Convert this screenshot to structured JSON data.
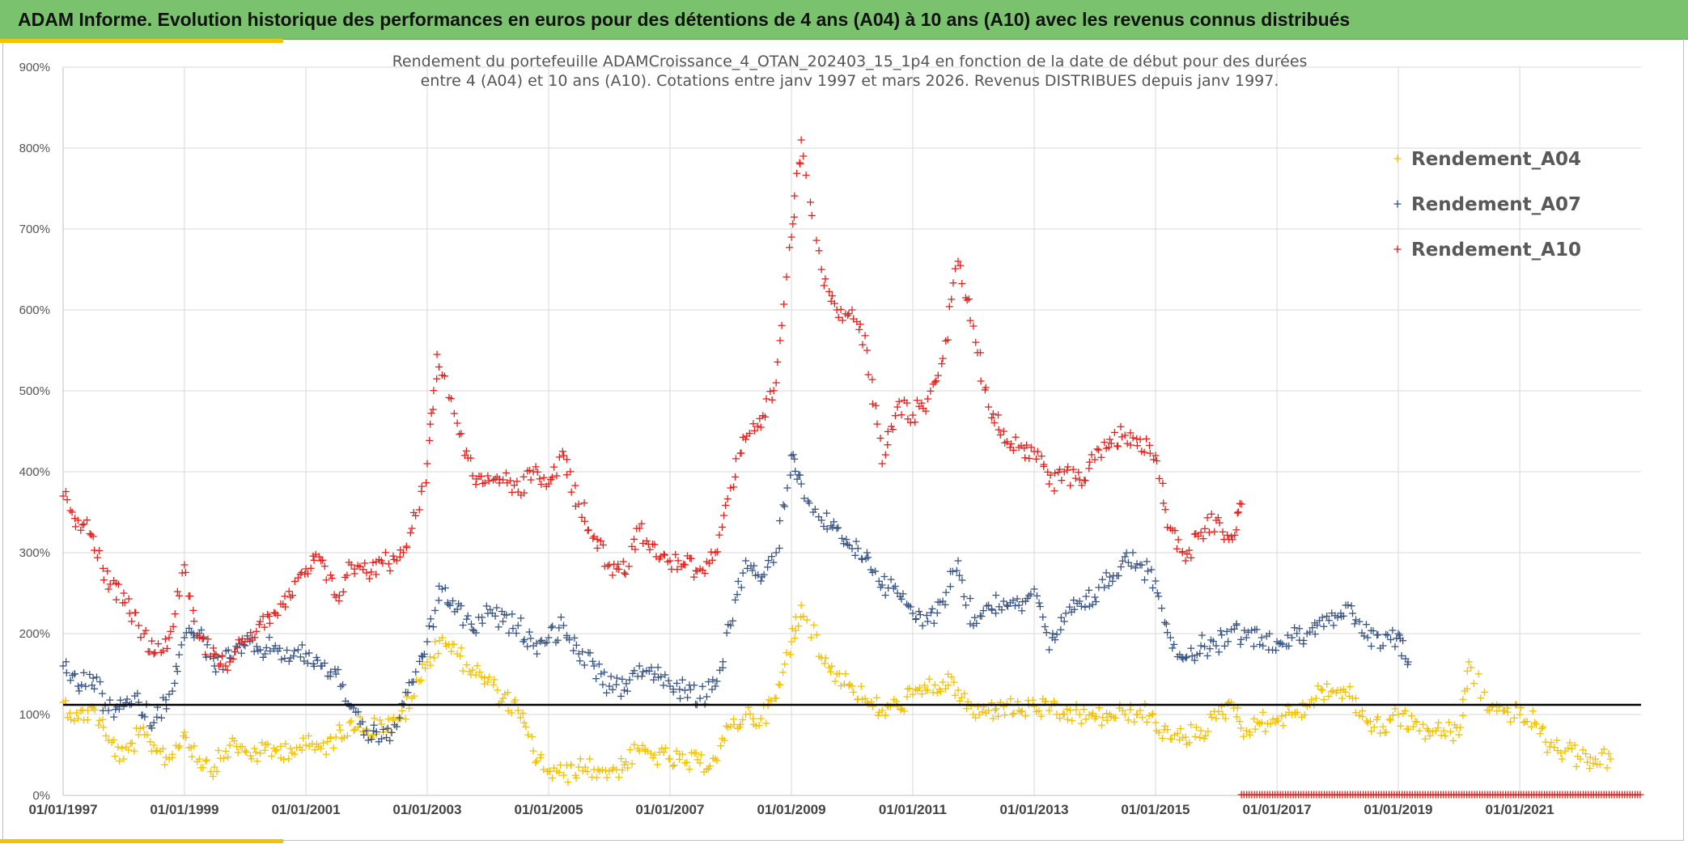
{
  "header": {
    "title": "ADAM Informe. Evolution historique des performances en euros pour des détentions de 4 ans (A04) à 10 ans (A10) avec les revenus connus distribués"
  },
  "colors": {
    "banner": "#7ac26e",
    "accent": "#f5c200",
    "A04": "#f2c100",
    "A07": "#3a5584",
    "A10": "#e3211c",
    "reference_line": "#000000"
  },
  "chart_data": {
    "type": "scatter",
    "title": "Rendement du portefeuille ADAMCroissance_4_OTAN_202403_15_1p4  en fonction de la date de début pour des durées",
    "subtitle": "entre 4 (A04) et 10 ans (A10). Cotations entre janv 1997 et mars 2026. Revenus DISTRIBUES depuis janv 1997.",
    "xlabel": "",
    "ylabel": "",
    "x_range": [
      "1997-01-01",
      "2023-01-01"
    ],
    "ylim": [
      0,
      900
    ],
    "y_ticks": [
      "0%",
      "100%",
      "200%",
      "300%",
      "400%",
      "500%",
      "600%",
      "700%",
      "800%",
      "900%"
    ],
    "x_ticks": [
      "01/01/1997",
      "01/01/1999",
      "01/01/2001",
      "01/01/2003",
      "01/01/2005",
      "01/01/2007",
      "01/01/2009",
      "01/01/2011",
      "01/01/2013",
      "01/01/2015",
      "01/01/2017",
      "01/01/2019",
      "01/01/2021"
    ],
    "grid": true,
    "legend": "top-right",
    "reference_line": 112,
    "marker": "+",
    "series": [
      {
        "name": "Rendement_A04",
        "color": "#f2c100",
        "points": [
          [
            "1997-01-01",
            115
          ],
          [
            "1997-04-01",
            95
          ],
          [
            "1997-07-01",
            108
          ],
          [
            "1997-10-01",
            68
          ],
          [
            "1998-01-01",
            45
          ],
          [
            "1998-04-01",
            75
          ],
          [
            "1998-07-01",
            62
          ],
          [
            "1998-10-01",
            45
          ],
          [
            "1999-01-01",
            78
          ],
          [
            "1999-04-01",
            45
          ],
          [
            "1999-07-01",
            35
          ],
          [
            "1999-10-01",
            62
          ],
          [
            "2000-01-01",
            55
          ],
          [
            "2000-04-01",
            52
          ],
          [
            "2000-07-01",
            55
          ],
          [
            "2000-10-01",
            58
          ],
          [
            "2001-01-01",
            62
          ],
          [
            "2001-04-01",
            58
          ],
          [
            "2001-07-01",
            72
          ],
          [
            "2001-10-01",
            92
          ],
          [
            "2002-01-01",
            82
          ],
          [
            "2002-04-01",
            88
          ],
          [
            "2002-07-01",
            85
          ],
          [
            "2002-10-01",
            120
          ],
          [
            "2003-01-01",
            165
          ],
          [
            "2003-04-01",
            195
          ],
          [
            "2003-07-01",
            175
          ],
          [
            "2003-10-01",
            155
          ],
          [
            "2004-01-01",
            140
          ],
          [
            "2004-04-01",
            120
          ],
          [
            "2004-07-01",
            105
          ],
          [
            "2004-10-01",
            55
          ],
          [
            "2005-01-01",
            30
          ],
          [
            "2005-04-01",
            25
          ],
          [
            "2005-07-01",
            35
          ],
          [
            "2005-10-01",
            32
          ],
          [
            "2006-01-01",
            30
          ],
          [
            "2006-04-01",
            38
          ],
          [
            "2006-07-01",
            55
          ],
          [
            "2006-10-01",
            50
          ],
          [
            "2007-01-01",
            45
          ],
          [
            "2007-04-01",
            40
          ],
          [
            "2007-07-01",
            40
          ],
          [
            "2007-10-01",
            45
          ],
          [
            "2008-01-01",
            85
          ],
          [
            "2008-04-01",
            100
          ],
          [
            "2008-07-01",
            95
          ],
          [
            "2008-10-01",
            120
          ],
          [
            "2009-01-01",
            190
          ],
          [
            "2009-03-01",
            235
          ],
          [
            "2009-07-01",
            170
          ],
          [
            "2009-10-01",
            150
          ],
          [
            "2010-01-01",
            135
          ],
          [
            "2010-04-01",
            115
          ],
          [
            "2010-07-01",
            105
          ],
          [
            "2010-10-01",
            110
          ],
          [
            "2011-01-01",
            125
          ],
          [
            "2011-04-01",
            130
          ],
          [
            "2011-07-01",
            140
          ],
          [
            "2011-10-01",
            130
          ],
          [
            "2012-01-01",
            100
          ],
          [
            "2012-04-01",
            105
          ],
          [
            "2012-07-01",
            110
          ],
          [
            "2012-10-01",
            105
          ],
          [
            "2013-01-01",
            110
          ],
          [
            "2013-04-01",
            105
          ],
          [
            "2013-07-01",
            100
          ],
          [
            "2013-10-01",
            100
          ],
          [
            "2014-01-01",
            95
          ],
          [
            "2014-04-01",
            100
          ],
          [
            "2014-07-01",
            100
          ],
          [
            "2014-10-01",
            105
          ],
          [
            "2015-01-01",
            90
          ],
          [
            "2015-04-01",
            70
          ],
          [
            "2015-07-01",
            72
          ],
          [
            "2015-10-01",
            80
          ],
          [
            "2016-01-01",
            95
          ],
          [
            "2016-04-01",
            115
          ],
          [
            "2016-07-01",
            80
          ],
          [
            "2016-10-01",
            90
          ],
          [
            "2017-01-01",
            95
          ],
          [
            "2017-04-01",
            100
          ],
          [
            "2017-07-01",
            110
          ],
          [
            "2017-10-01",
            130
          ],
          [
            "2018-01-01",
            130
          ],
          [
            "2018-04-01",
            120
          ],
          [
            "2018-07-01",
            90
          ],
          [
            "2018-10-01",
            85
          ],
          [
            "2019-01-01",
            100
          ],
          [
            "2019-04-01",
            85
          ],
          [
            "2019-07-01",
            80
          ],
          [
            "2019-10-01",
            80
          ],
          [
            "2020-01-01",
            75
          ],
          [
            "2020-03-01",
            165
          ],
          [
            "2020-07-01",
            105
          ],
          [
            "2020-10-01",
            105
          ],
          [
            "2021-01-01",
            100
          ],
          [
            "2021-04-01",
            90
          ],
          [
            "2021-07-01",
            60
          ],
          [
            "2021-10-01",
            55
          ],
          [
            "2022-01-01",
            45
          ],
          [
            "2022-04-01",
            45
          ],
          [
            "2022-07-01",
            45
          ]
        ]
      },
      {
        "name": "Rendement_A07",
        "color": "#3a5584",
        "points": [
          [
            "1997-01-01",
            160
          ],
          [
            "1997-04-01",
            135
          ],
          [
            "1997-07-01",
            145
          ],
          [
            "1997-10-01",
            105
          ],
          [
            "1998-01-01",
            110
          ],
          [
            "1998-04-01",
            115
          ],
          [
            "1998-07-01",
            90
          ],
          [
            "1998-10-01",
            125
          ],
          [
            "1999-01-01",
            195
          ],
          [
            "1999-04-01",
            200
          ],
          [
            "1999-07-01",
            160
          ],
          [
            "1999-10-01",
            170
          ],
          [
            "2000-01-01",
            185
          ],
          [
            "2000-04-01",
            180
          ],
          [
            "2000-07-01",
            185
          ],
          [
            "2000-10-01",
            170
          ],
          [
            "2001-01-01",
            175
          ],
          [
            "2001-04-01",
            160
          ],
          [
            "2001-07-01",
            150
          ],
          [
            "2001-10-01",
            110
          ],
          [
            "2002-01-01",
            80
          ],
          [
            "2002-04-01",
            70
          ],
          [
            "2002-07-01",
            85
          ],
          [
            "2002-10-01",
            140
          ],
          [
            "2003-01-01",
            190
          ],
          [
            "2003-04-01",
            255
          ],
          [
            "2003-07-01",
            230
          ],
          [
            "2003-10-01",
            205
          ],
          [
            "2004-01-01",
            225
          ],
          [
            "2004-04-01",
            215
          ],
          [
            "2004-07-01",
            210
          ],
          [
            "2004-10-01",
            185
          ],
          [
            "2005-01-01",
            195
          ],
          [
            "2005-04-01",
            210
          ],
          [
            "2005-07-01",
            175
          ],
          [
            "2005-10-01",
            160
          ],
          [
            "2006-01-01",
            135
          ],
          [
            "2006-04-01",
            130
          ],
          [
            "2006-07-01",
            160
          ],
          [
            "2006-10-01",
            150
          ],
          [
            "2007-01-01",
            135
          ],
          [
            "2007-04-01",
            130
          ],
          [
            "2007-07-01",
            120
          ],
          [
            "2007-10-01",
            135
          ],
          [
            "2008-01-01",
            210
          ],
          [
            "2008-04-01",
            290
          ],
          [
            "2008-07-01",
            265
          ],
          [
            "2008-10-01",
            300
          ],
          [
            "2009-01-01",
            420
          ],
          [
            "2009-03-01",
            385
          ],
          [
            "2009-07-01",
            340
          ],
          [
            "2009-10-01",
            330
          ],
          [
            "2010-01-01",
            305
          ],
          [
            "2010-04-01",
            300
          ],
          [
            "2010-07-01",
            260
          ],
          [
            "2010-10-01",
            250
          ],
          [
            "2011-01-01",
            225
          ],
          [
            "2011-04-01",
            215
          ],
          [
            "2011-07-01",
            240
          ],
          [
            "2011-10-01",
            290
          ],
          [
            "2012-01-01",
            210
          ],
          [
            "2012-04-01",
            235
          ],
          [
            "2012-07-01",
            240
          ],
          [
            "2012-10-01",
            235
          ],
          [
            "2013-01-01",
            255
          ],
          [
            "2013-04-01",
            180
          ],
          [
            "2013-07-01",
            215
          ],
          [
            "2013-10-01",
            240
          ],
          [
            "2014-01-01",
            245
          ],
          [
            "2014-04-01",
            270
          ],
          [
            "2014-07-01",
            295
          ],
          [
            "2014-10-01",
            285
          ],
          [
            "2015-01-01",
            265
          ],
          [
            "2015-04-01",
            195
          ],
          [
            "2015-07-01",
            170
          ],
          [
            "2015-10-01",
            185
          ],
          [
            "2016-01-01",
            185
          ],
          [
            "2016-04-01",
            205
          ],
          [
            "2016-07-01",
            195
          ],
          [
            "2016-10-01",
            195
          ],
          [
            "2017-01-01",
            190
          ],
          [
            "2017-04-01",
            195
          ],
          [
            "2017-07-01",
            200
          ],
          [
            "2017-10-01",
            220
          ],
          [
            "2018-01-01",
            220
          ],
          [
            "2018-04-01",
            225
          ],
          [
            "2018-07-01",
            195
          ],
          [
            "2018-10-01",
            185
          ],
          [
            "2019-01-01",
            200
          ],
          [
            "2019-03-01",
            165
          ]
        ]
      },
      {
        "name": "Rendement_A10",
        "color": "#e3211c",
        "points": [
          [
            "1997-01-01",
            370
          ],
          [
            "1997-04-01",
            340
          ],
          [
            "1997-07-01",
            320
          ],
          [
            "1997-10-01",
            255
          ],
          [
            "1998-01-01",
            250
          ],
          [
            "1998-04-01",
            210
          ],
          [
            "1998-07-01",
            175
          ],
          [
            "1998-10-01",
            195
          ],
          [
            "1999-01-01",
            285
          ],
          [
            "1999-04-01",
            195
          ],
          [
            "1999-07-01",
            175
          ],
          [
            "1999-10-01",
            165
          ],
          [
            "2000-01-01",
            190
          ],
          [
            "2000-04-01",
            215
          ],
          [
            "2000-07-01",
            225
          ],
          [
            "2000-10-01",
            245
          ],
          [
            "2001-01-01",
            280
          ],
          [
            "2001-04-01",
            290
          ],
          [
            "2001-07-01",
            245
          ],
          [
            "2001-10-01",
            285
          ],
          [
            "2002-01-01",
            275
          ],
          [
            "2002-04-01",
            290
          ],
          [
            "2002-07-01",
            290
          ],
          [
            "2002-10-01",
            330
          ],
          [
            "2003-01-01",
            410
          ],
          [
            "2003-03-01",
            545
          ],
          [
            "2003-07-01",
            460
          ],
          [
            "2003-10-01",
            395
          ],
          [
            "2004-01-01",
            395
          ],
          [
            "2004-04-01",
            390
          ],
          [
            "2004-07-01",
            375
          ],
          [
            "2004-10-01",
            400
          ],
          [
            "2005-01-01",
            385
          ],
          [
            "2005-04-01",
            420
          ],
          [
            "2005-07-01",
            360
          ],
          [
            "2005-10-01",
            320
          ],
          [
            "2006-01-01",
            285
          ],
          [
            "2006-04-01",
            275
          ],
          [
            "2006-07-01",
            330
          ],
          [
            "2006-10-01",
            310
          ],
          [
            "2007-01-01",
            290
          ],
          [
            "2007-04-01",
            285
          ],
          [
            "2007-07-01",
            280
          ],
          [
            "2007-10-01",
            300
          ],
          [
            "2008-01-01",
            380
          ],
          [
            "2008-04-01",
            440
          ],
          [
            "2008-07-01",
            455
          ],
          [
            "2008-10-01",
            510
          ],
          [
            "2009-01-01",
            690
          ],
          [
            "2009-03-01",
            810
          ],
          [
            "2009-07-01",
            650
          ],
          [
            "2009-10-01",
            600
          ],
          [
            "2010-01-01",
            600
          ],
          [
            "2010-04-01",
            550
          ],
          [
            "2010-07-01",
            410
          ],
          [
            "2010-10-01",
            480
          ],
          [
            "2011-01-01",
            470
          ],
          [
            "2011-04-01",
            490
          ],
          [
            "2011-07-01",
            540
          ],
          [
            "2011-10-01",
            660
          ],
          [
            "2012-01-01",
            580
          ],
          [
            "2012-04-01",
            480
          ],
          [
            "2012-07-01",
            450
          ],
          [
            "2012-10-01",
            430
          ],
          [
            "2013-01-01",
            425
          ],
          [
            "2013-04-01",
            385
          ],
          [
            "2013-07-01",
            400
          ],
          [
            "2013-10-01",
            390
          ],
          [
            "2014-01-01",
            415
          ],
          [
            "2014-04-01",
            440
          ],
          [
            "2014-07-01",
            445
          ],
          [
            "2014-10-01",
            440
          ],
          [
            "2015-01-01",
            420
          ],
          [
            "2015-04-01",
            330
          ],
          [
            "2015-07-01",
            290
          ],
          [
            "2015-10-01",
            325
          ],
          [
            "2016-01-01",
            340
          ],
          [
            "2016-04-01",
            320
          ],
          [
            "2016-06-01",
            360
          ]
        ]
      }
    ]
  }
}
